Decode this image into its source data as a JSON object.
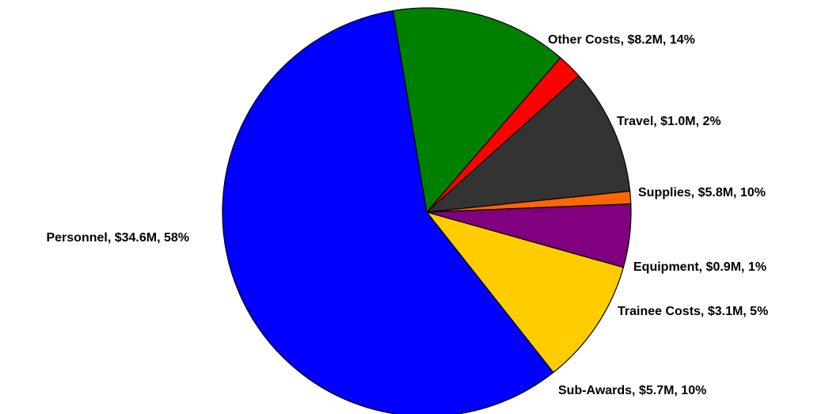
{
  "chart_data": {
    "type": "pie",
    "title": "",
    "slices": [
      {
        "name": "Other Costs",
        "amount": "$8.2M",
        "percent": 14,
        "color": "#008000",
        "label": "Other Costs, $8.2M, 14%"
      },
      {
        "name": "Travel",
        "amount": "$1.0M",
        "percent": 2,
        "color": "#ff0000",
        "label": "Travel, $1.0M, 2%"
      },
      {
        "name": "Supplies",
        "amount": "$5.8M",
        "percent": 10,
        "color": "#333333",
        "label": "Supplies, $5.8M, 10%"
      },
      {
        "name": "Equipment",
        "amount": "$0.9M",
        "percent": 1,
        "color": "#ff6600",
        "label": "Equipment, $0.9M, 1%"
      },
      {
        "name": "Trainee Costs",
        "amount": "$3.1M",
        "percent": 5,
        "color": "#800080",
        "label": "Trainee Costs, $3.1M, 5%"
      },
      {
        "name": "Sub-Awards",
        "amount": "$5.7M",
        "percent": 10,
        "color": "#ffcc00",
        "label": "Sub-Awards, $5.7M, 10%"
      },
      {
        "name": "Personnel",
        "amount": "$34.6M",
        "percent": 58,
        "color": "#0000ff",
        "label": "Personnel, $34.6M, 58%"
      }
    ]
  }
}
